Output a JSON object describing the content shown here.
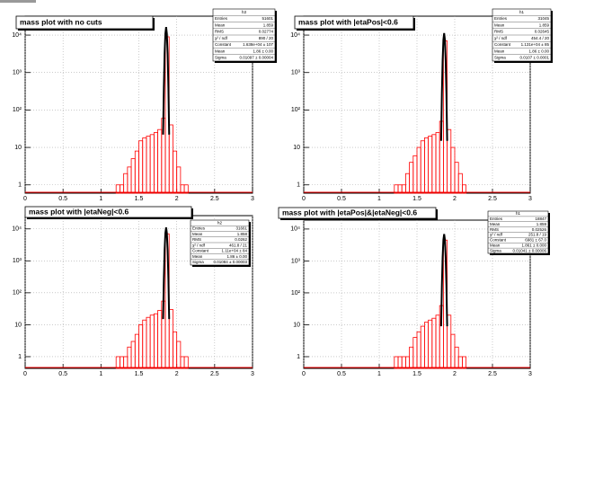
{
  "chart_data": [
    {
      "type": "histogram",
      "title": "mass plot with no cuts",
      "ylog": true,
      "grid": true,
      "color": "#ff0000",
      "fit_color": "#000000",
      "stats": {
        "name": "h3",
        "rows": [
          [
            "Entries",
            "51601"
          ],
          [
            "Mean",
            "1.859"
          ],
          [
            "RMS",
            "0.02774"
          ],
          [
            "χ² / ndf",
            "890 / 20"
          ],
          [
            "Constant",
            "1.638e+04 ± 107"
          ],
          [
            "Mean",
            "1.86 ± 0.00"
          ],
          [
            "Sigma",
            "0.01097 ± 0.00004"
          ]
        ]
      },
      "bins": [
        1.2,
        1.25,
        1.3,
        1.35,
        1.4,
        1.45,
        1.5,
        1.55,
        1.6,
        1.65,
        1.7,
        1.75,
        1.8,
        1.85,
        1.9,
        1.95,
        2.0,
        2.05,
        2.1,
        2.15
      ],
      "values": [
        1,
        1,
        2,
        3,
        5,
        8,
        15,
        18,
        20,
        22,
        25,
        30,
        60,
        9000,
        40,
        8,
        3,
        1,
        1
      ],
      "fit_x": [
        1.82,
        1.83,
        1.84,
        1.85,
        1.86,
        1.87,
        1.88,
        1.89,
        1.9
      ],
      "fit_values": [
        22,
        400,
        3130,
        10800,
        16380,
        10800,
        3130,
        400,
        22
      ],
      "xlim": [
        0,
        3
      ],
      "xticks": [
        0,
        0.5,
        1,
        1.5,
        2,
        2.5,
        3
      ],
      "ylim": [
        0.6,
        32000
      ],
      "yticks": [
        1,
        10,
        {
          "value": 100,
          "label": "10²"
        },
        {
          "value": 1000,
          "label": "10³"
        },
        {
          "value": 10000,
          "label": "10⁴"
        }
      ]
    },
    {
      "type": "histogram",
      "title": "mass plot with |etaPos|<0.6",
      "ylog": true,
      "grid": true,
      "color": "#ff0000",
      "fit_color": "#000000",
      "stats": {
        "name": "h1",
        "rows": [
          [
            "Entries",
            "31045"
          ],
          [
            "Mean",
            "1.859"
          ],
          [
            "RMS",
            "0.02645"
          ],
          [
            "χ² / ndf",
            "454.4 / 20"
          ],
          [
            "Constant",
            "1.131e+04 ± 85"
          ],
          [
            "Mean",
            "1.86 ± 0.00"
          ],
          [
            "Sigma",
            "0.0107 ± 0.0001"
          ]
        ]
      },
      "bins": [
        1.2,
        1.25,
        1.3,
        1.35,
        1.4,
        1.45,
        1.5,
        1.55,
        1.6,
        1.65,
        1.7,
        1.75,
        1.8,
        1.85,
        1.9,
        1.95,
        2.0,
        2.05,
        2.1,
        2.15
      ],
      "values": [
        1,
        1,
        1,
        2,
        4,
        6,
        10,
        15,
        18,
        20,
        22,
        25,
        50,
        7000,
        30,
        10,
        4,
        2,
        1
      ],
      "fit_x": [
        1.82,
        1.83,
        1.84,
        1.85,
        1.86,
        1.87,
        1.88,
        1.89,
        1.9
      ],
      "fit_values": [
        15,
        276,
        2160,
        7460,
        11310,
        7460,
        2160,
        276,
        15
      ],
      "xlim": [
        0,
        3
      ],
      "xticks": [
        0,
        0.5,
        1,
        1.5,
        2,
        2.5,
        3
      ],
      "ylim": [
        0.6,
        32000
      ],
      "yticks": [
        1,
        10,
        {
          "value": 100,
          "label": "10²"
        },
        {
          "value": 1000,
          "label": "10³"
        },
        {
          "value": 10000,
          "label": "10⁴"
        }
      ]
    },
    {
      "type": "histogram",
      "title": "mass plot with |etaNeg|<0.6",
      "ylog": true,
      "grid": true,
      "color": "#ff0000",
      "fit_color": "#000000",
      "stats": {
        "name": "h2",
        "rows": [
          [
            "Entries",
            "31661"
          ],
          [
            "Mean",
            "1.858"
          ],
          [
            "RMS",
            "0.0262"
          ],
          [
            "χ² / ndf",
            "461.8 / 21"
          ],
          [
            "Constant",
            "1.11e+04 ± 84"
          ],
          [
            "Mean",
            "1.86 ± 0.00"
          ],
          [
            "Sigma",
            "0.01084 ± 0.00003"
          ]
        ]
      },
      "bins": [
        1.2,
        1.25,
        1.3,
        1.35,
        1.4,
        1.45,
        1.5,
        1.55,
        1.6,
        1.65,
        1.7,
        1.75,
        1.8,
        1.85,
        1.9,
        1.95,
        2.0,
        2.05,
        2.1,
        2.15
      ],
      "values": [
        1,
        1,
        1,
        2,
        3,
        5,
        10,
        14,
        17,
        20,
        22,
        28,
        55,
        7000,
        30,
        6,
        3,
        1,
        1
      ],
      "fit_x": [
        1.82,
        1.83,
        1.84,
        1.85,
        1.86,
        1.87,
        1.88,
        1.89,
        1.9
      ],
      "fit_values": [
        15,
        271,
        2120,
        7320,
        11100,
        7320,
        2120,
        271,
        15
      ],
      "xlim": [
        0,
        3
      ],
      "xticks": [
        0,
        0.5,
        1,
        1.5,
        2,
        2.5,
        3
      ],
      "ylim": [
        0.43,
        26000
      ],
      "yticks": [
        1,
        10,
        {
          "value": 100,
          "label": "10²"
        },
        {
          "value": 1000,
          "label": "10³"
        },
        {
          "value": 10000,
          "label": "10⁴"
        }
      ]
    },
    {
      "type": "histogram",
      "title": "mass plot with |etaPos|&|etaNeg|<0.6",
      "ylog": true,
      "grid": true,
      "color": "#ff0000",
      "fit_color": "#000000",
      "stats": {
        "name": "h1",
        "rows": [
          [
            "Entries",
            "18847"
          ],
          [
            "Mean",
            "1.859"
          ],
          [
            "RMS",
            "0.02526"
          ],
          [
            "χ² / ndf",
            "251.8 / 19"
          ],
          [
            "Constant",
            "6981 ± 67.0"
          ],
          [
            "Mean",
            "1.861 ± 0.000"
          ],
          [
            "Sigma",
            "0.01041 ± 0.00006"
          ]
        ]
      },
      "bins": [
        1.2,
        1.25,
        1.3,
        1.35,
        1.4,
        1.45,
        1.5,
        1.55,
        1.6,
        1.65,
        1.7,
        1.75,
        1.8,
        1.85,
        1.9,
        1.95,
        2.0,
        2.05,
        2.1,
        2.15
      ],
      "values": [
        1,
        1,
        1,
        1,
        2,
        4,
        6,
        9,
        12,
        14,
        16,
        20,
        40,
        4500,
        20,
        5,
        2,
        1,
        1
      ],
      "fit_x": [
        1.82,
        1.83,
        1.84,
        1.85,
        1.86,
        1.87,
        1.88,
        1.89,
        1.9
      ],
      "fit_values": [
        9,
        170,
        1330,
        4610,
        6981,
        4610,
        1330,
        170,
        9
      ],
      "xlim": [
        0,
        3
      ],
      "xticks": [
        0,
        0.5,
        1,
        1.5,
        2,
        2.5,
        3
      ],
      "ylim": [
        0.43,
        19000
      ],
      "yticks": [
        1,
        10,
        {
          "value": 100,
          "label": "10²"
        },
        {
          "value": 1000,
          "label": "10³"
        },
        {
          "value": 10000,
          "label": "10⁴"
        }
      ]
    }
  ]
}
